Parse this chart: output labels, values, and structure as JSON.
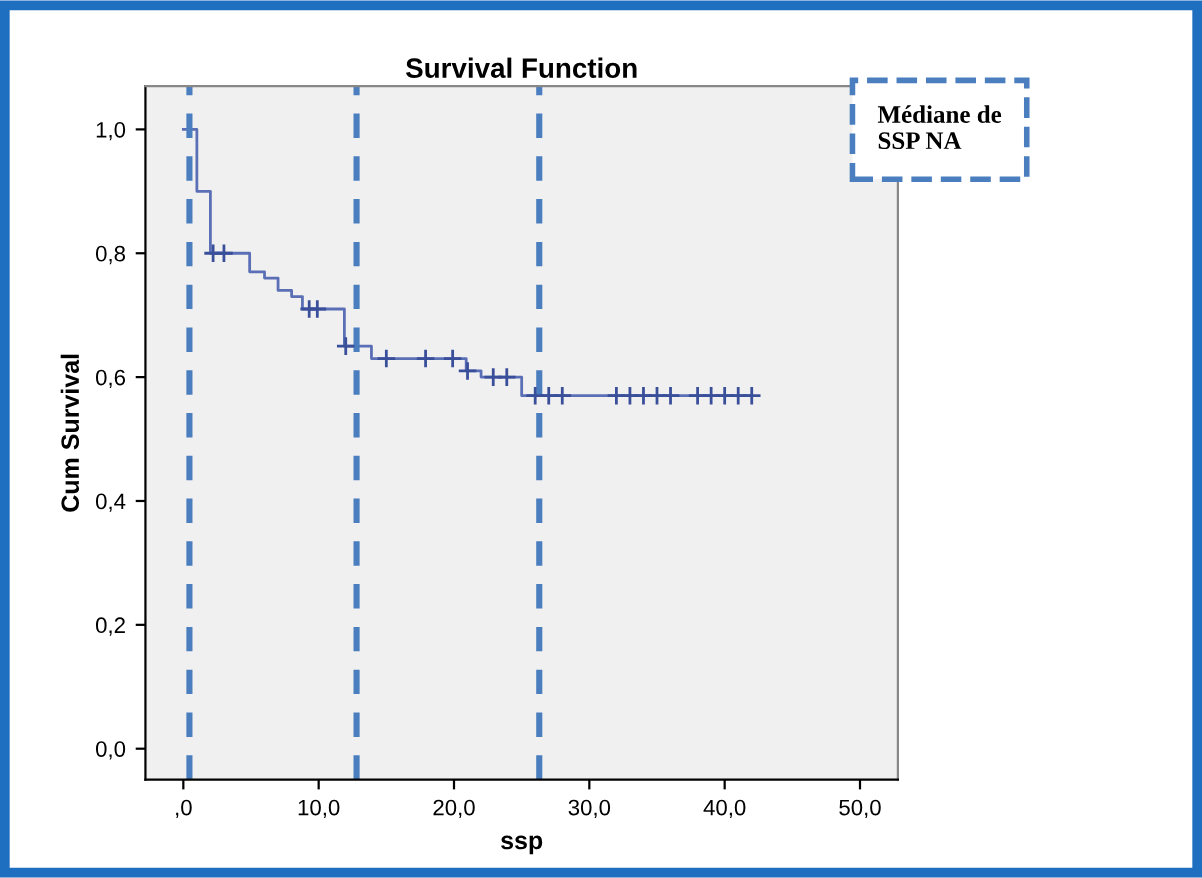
{
  "chart_data": {
    "type": "step",
    "title": "Survival Function",
    "xlabel": "ssp",
    "ylabel": "Cum Survival",
    "xlim": [
      -2.8,
      52.8
    ],
    "ylim": [
      -0.05,
      1.07
    ],
    "xticks": [
      {
        "value": 0,
        "label": ",0"
      },
      {
        "value": 10,
        "label": "10,0"
      },
      {
        "value": 20,
        "label": "20,0"
      },
      {
        "value": 30,
        "label": "30,0"
      },
      {
        "value": 40,
        "label": "40,0"
      },
      {
        "value": 50,
        "label": "50,0"
      }
    ],
    "yticks": [
      {
        "value": 0,
        "label": "0,0"
      },
      {
        "value": 0.2,
        "label": "0,2"
      },
      {
        "value": 0.4,
        "label": "0,4"
      },
      {
        "value": 0.6,
        "label": "0,6"
      },
      {
        "value": 0.8,
        "label": "0,8"
      },
      {
        "value": 1,
        "label": "1,0"
      }
    ],
    "grid": false,
    "legend": false,
    "series": [
      {
        "color": "#5a6fb5",
        "marker": "none",
        "x": [
          0,
          1,
          2,
          4.9,
          6,
          7,
          8,
          8.8,
          11.9,
          13.9,
          20.9,
          22,
          25,
          42
        ],
        "values": [
          1.0,
          0.9,
          0.8,
          0.77,
          0.76,
          0.74,
          0.73,
          0.71,
          0.65,
          0.63,
          0.61,
          0.6,
          0.57,
          0.57
        ]
      },
      {
        "type": "scatter",
        "color": "#3a4f9a",
        "marker": "cross",
        "x": [
          2.2,
          3,
          9.3,
          9.9,
          12,
          15,
          17.9,
          19.9,
          21,
          22.9,
          23.9,
          26,
          27,
          28,
          32,
          33,
          34,
          35,
          36,
          38,
          39,
          40,
          41,
          42
        ],
        "values": [
          0.8,
          0.8,
          0.71,
          0.71,
          0.65,
          0.63,
          0.63,
          0.63,
          0.61,
          0.6,
          0.6,
          0.57,
          0.57,
          0.57,
          0.57,
          0.57,
          0.57,
          0.57,
          0.57,
          0.57,
          0.57,
          0.57,
          0.57,
          0.57
        ]
      }
    ],
    "ref_lines": [
      {
        "axis": "x",
        "value": 0.45,
        "color": "#4a7ebf",
        "line_style": "dashed"
      },
      {
        "axis": "x",
        "value": 12.8,
        "color": "#4a7ebf",
        "line_style": "dashed"
      },
      {
        "axis": "x",
        "value": 26.3,
        "color": "#4a7ebf",
        "line_style": "dashed"
      }
    ],
    "annotations": [
      "Médiane de\nSSP NA"
    ]
  }
}
